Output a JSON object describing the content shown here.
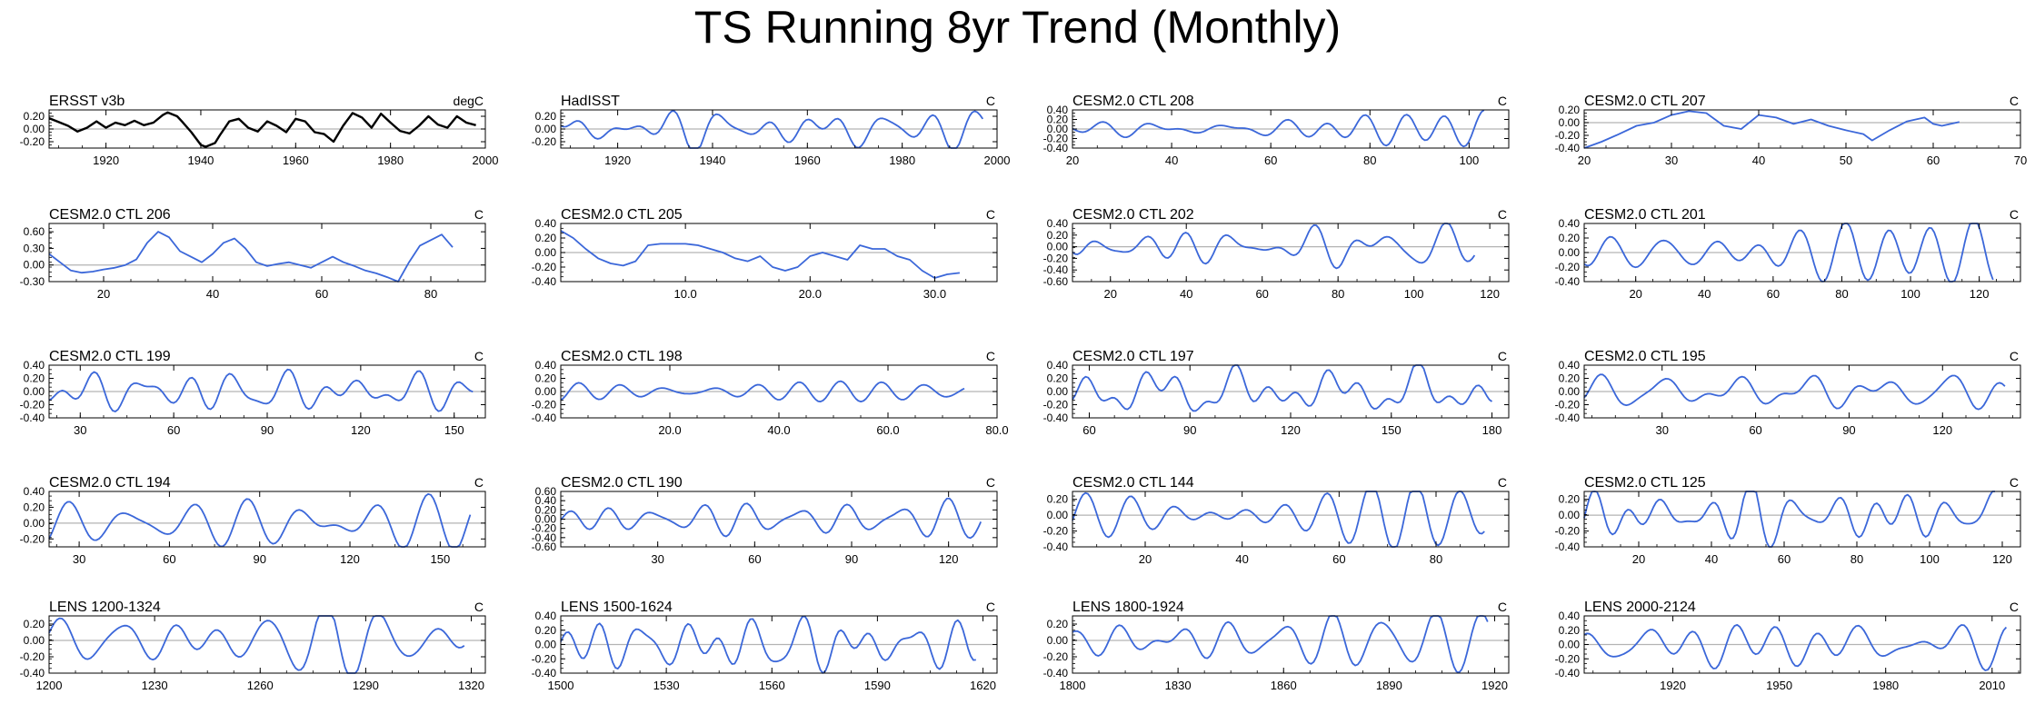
{
  "title": "TS Running 8yr Trend (Monthly)",
  "colors": {
    "observed": "#000000",
    "model": "#3b67d9",
    "zero_line": "#b3b3b3",
    "axis": "#000000"
  },
  "chart_data": [
    {
      "title": "ERSST v3b",
      "units": "degC",
      "type": "line",
      "color": "#000000",
      "xlim": [
        1908,
        2000
      ],
      "ylim": [
        -0.3,
        0.3
      ],
      "yticks": [
        "0.20",
        "0.00",
        "-0.20"
      ],
      "xticks": [
        "1920",
        "1940",
        "1960",
        "1980",
        "2000"
      ],
      "x_start": 1908,
      "x_end": 1998,
      "yscale": 0.28,
      "seed": 1,
      "series": [
        [
          1908,
          0.17
        ],
        [
          1910,
          0.11
        ],
        [
          1912,
          0.05
        ],
        [
          1914,
          -0.04
        ],
        [
          1916,
          0.02
        ],
        [
          1918,
          0.12
        ],
        [
          1920,
          0.02
        ],
        [
          1922,
          0.1
        ],
        [
          1924,
          0.06
        ],
        [
          1926,
          0.13
        ],
        [
          1928,
          0.06
        ],
        [
          1930,
          0.1
        ],
        [
          1932,
          0.22
        ],
        [
          1933,
          0.26
        ],
        [
          1935,
          0.2
        ],
        [
          1936,
          0.12
        ],
        [
          1938,
          -0.05
        ],
        [
          1940,
          -0.25
        ],
        [
          1941,
          -0.28
        ],
        [
          1943,
          -0.22
        ],
        [
          1944,
          -0.1
        ],
        [
          1946,
          0.12
        ],
        [
          1948,
          0.16
        ],
        [
          1950,
          0.02
        ],
        [
          1952,
          -0.04
        ],
        [
          1954,
          0.12
        ],
        [
          1956,
          0.05
        ],
        [
          1958,
          -0.05
        ],
        [
          1960,
          0.16
        ],
        [
          1962,
          0.12
        ],
        [
          1964,
          -0.05
        ],
        [
          1966,
          -0.08
        ],
        [
          1968,
          -0.2
        ],
        [
          1970,
          0.05
        ],
        [
          1972,
          0.25
        ],
        [
          1974,
          0.18
        ],
        [
          1976,
          0.02
        ],
        [
          1978,
          0.24
        ],
        [
          1980,
          0.1
        ],
        [
          1982,
          -0.03
        ],
        [
          1984,
          -0.07
        ],
        [
          1986,
          0.05
        ],
        [
          1988,
          0.2
        ],
        [
          1990,
          0.07
        ],
        [
          1992,
          0.02
        ],
        [
          1994,
          0.2
        ],
        [
          1996,
          0.1
        ],
        [
          1998,
          0.06
        ]
      ]
    },
    {
      "title": "HadISST",
      "units": "C",
      "type": "line",
      "color": "#3b67d9",
      "xlim": [
        1908,
        2000
      ],
      "ylim": [
        -0.3,
        0.3
      ],
      "yticks": [
        "0.20",
        "0.00",
        "-0.20"
      ],
      "xticks": [
        "1920",
        "1940",
        "1960",
        "1980",
        "2000"
      ],
      "x_start": 1908,
      "x_end": 1997,
      "yscale": 0.27,
      "seed": 2
    },
    {
      "title": "CESM2.0 CTL 208",
      "units": "C",
      "type": "line",
      "color": "#3b67d9",
      "xlim": [
        20,
        108
      ],
      "ylim": [
        -0.4,
        0.4
      ],
      "yticks": [
        "0.40",
        "0.20",
        "0.00",
        "-0.20",
        "-0.40"
      ],
      "xticks": [
        "20",
        "40",
        "60",
        "80",
        "100"
      ],
      "x_start": 20,
      "x_end": 103,
      "yscale": 0.3,
      "seed": 3
    },
    {
      "title": "CESM2.0 CTL 207",
      "units": "C",
      "type": "line",
      "color": "#3b67d9",
      "xlim": [
        20,
        70
      ],
      "ylim": [
        -0.4,
        0.2
      ],
      "yticks": [
        "0.20",
        "0.00",
        "-0.20",
        "-0.40"
      ],
      "xticks": [
        "20",
        "30",
        "40",
        "50",
        "60",
        "70"
      ],
      "x_start": 20,
      "x_end": 63,
      "yscale": 0.25,
      "seed": 4,
      "series": [
        [
          20,
          -0.4
        ],
        [
          22,
          -0.3
        ],
        [
          24,
          -0.18
        ],
        [
          26,
          -0.05
        ],
        [
          28,
          0.0
        ],
        [
          30,
          0.12
        ],
        [
          32,
          0.18
        ],
        [
          34,
          0.15
        ],
        [
          36,
          -0.05
        ],
        [
          38,
          -0.1
        ],
        [
          40,
          0.12
        ],
        [
          42,
          0.08
        ],
        [
          44,
          -0.02
        ],
        [
          46,
          0.05
        ],
        [
          48,
          -0.05
        ],
        [
          50,
          -0.12
        ],
        [
          52,
          -0.18
        ],
        [
          53,
          -0.28
        ],
        [
          55,
          -0.12
        ],
        [
          57,
          0.02
        ],
        [
          59,
          0.08
        ],
        [
          60,
          -0.02
        ],
        [
          61,
          -0.05
        ],
        [
          63,
          0.01
        ]
      ]
    },
    {
      "title": "CESM2.0 CTL 206",
      "units": "C",
      "type": "line",
      "color": "#3b67d9",
      "xlim": [
        10,
        90
      ],
      "ylim": [
        -0.3,
        0.75
      ],
      "yticks": [
        "0.60",
        "0.30",
        "0.00",
        "-0.30"
      ],
      "xticks": [
        "20",
        "40",
        "60",
        "80"
      ],
      "x_start": 10,
      "x_end": 84,
      "yscale": 0.3,
      "seed": 5,
      "series": [
        [
          10,
          0.2
        ],
        [
          12,
          0.05
        ],
        [
          14,
          -0.1
        ],
        [
          16,
          -0.14
        ],
        [
          18,
          -0.12
        ],
        [
          20,
          -0.08
        ],
        [
          22,
          -0.05
        ],
        [
          24,
          0.0
        ],
        [
          26,
          0.1
        ],
        [
          28,
          0.4
        ],
        [
          30,
          0.6
        ],
        [
          32,
          0.5
        ],
        [
          34,
          0.25
        ],
        [
          36,
          0.15
        ],
        [
          38,
          0.05
        ],
        [
          40,
          0.2
        ],
        [
          42,
          0.4
        ],
        [
          44,
          0.48
        ],
        [
          46,
          0.3
        ],
        [
          48,
          0.05
        ],
        [
          50,
          -0.02
        ],
        [
          52,
          0.02
        ],
        [
          54,
          0.05
        ],
        [
          56,
          0.0
        ],
        [
          58,
          -0.05
        ],
        [
          60,
          0.05
        ],
        [
          62,
          0.15
        ],
        [
          64,
          0.05
        ],
        [
          66,
          -0.02
        ],
        [
          68,
          -0.1
        ],
        [
          70,
          -0.15
        ],
        [
          72,
          -0.22
        ],
        [
          74,
          -0.3
        ],
        [
          76,
          0.05
        ],
        [
          78,
          0.35
        ],
        [
          80,
          0.45
        ],
        [
          82,
          0.55
        ],
        [
          84,
          0.32
        ]
      ]
    },
    {
      "title": "CESM2.0 CTL 205",
      "units": "C",
      "type": "line",
      "color": "#3b67d9",
      "xlim": [
        0,
        35
      ],
      "ylim": [
        -0.4,
        0.4
      ],
      "yticks": [
        "0.40",
        "0.20",
        "0.00",
        "-0.20",
        "-0.40"
      ],
      "xticks": [
        "10.0",
        "20.0",
        "30.0"
      ],
      "xtick_values": [
        10,
        20,
        30
      ],
      "x_start": 0,
      "x_end": 32,
      "yscale": 0.25,
      "seed": 6,
      "series": [
        [
          0,
          0.3
        ],
        [
          1,
          0.2
        ],
        [
          2,
          0.05
        ],
        [
          3,
          -0.08
        ],
        [
          4,
          -0.15
        ],
        [
          5,
          -0.18
        ],
        [
          6,
          -0.12
        ],
        [
          7,
          0.1
        ],
        [
          8,
          0.12
        ],
        [
          9,
          0.12
        ],
        [
          10,
          0.12
        ],
        [
          11,
          0.1
        ],
        [
          12,
          0.05
        ],
        [
          13,
          0.0
        ],
        [
          14,
          -0.08
        ],
        [
          15,
          -0.12
        ],
        [
          16,
          -0.05
        ],
        [
          17,
          -0.2
        ],
        [
          18,
          -0.25
        ],
        [
          19,
          -0.2
        ],
        [
          20,
          -0.05
        ],
        [
          21,
          0.0
        ],
        [
          22,
          -0.05
        ],
        [
          23,
          -0.1
        ],
        [
          24,
          0.1
        ],
        [
          25,
          0.05
        ],
        [
          26,
          0.05
        ],
        [
          27,
          -0.05
        ],
        [
          28,
          -0.1
        ],
        [
          29,
          -0.25
        ],
        [
          30,
          -0.35
        ],
        [
          31,
          -0.3
        ],
        [
          32,
          -0.28
        ]
      ]
    },
    {
      "title": "CESM2.0 CTL 202",
      "units": "C",
      "type": "line",
      "color": "#3b67d9",
      "xlim": [
        10,
        125
      ],
      "ylim": [
        -0.6,
        0.4
      ],
      "yticks": [
        "0.40",
        "0.20",
        "0.00",
        "-0.20",
        "-0.40",
        "-0.60"
      ],
      "xticks": [
        "20",
        "40",
        "60",
        "80",
        "100",
        "120"
      ],
      "x_start": 10,
      "x_end": 116,
      "yscale": 0.3,
      "seed": 7
    },
    {
      "title": "CESM2.0 CTL 201",
      "units": "C",
      "type": "line",
      "color": "#3b67d9",
      "xlim": [
        5,
        132
      ],
      "ylim": [
        -0.4,
        0.4
      ],
      "yticks": [
        "0.40",
        "0.20",
        "0.00",
        "-0.20",
        "-0.40"
      ],
      "xticks": [
        "20",
        "40",
        "60",
        "80",
        "100",
        "120"
      ],
      "x_start": 5,
      "x_end": 124,
      "yscale": 0.3,
      "seed": 8
    },
    {
      "title": "CESM2.0 CTL 199",
      "units": "C",
      "type": "line",
      "color": "#3b67d9",
      "xlim": [
        20,
        160
      ],
      "ylim": [
        -0.4,
        0.4
      ],
      "yticks": [
        "0.40",
        "0.20",
        "0.00",
        "-0.20",
        "-0.40"
      ],
      "xticks": [
        "30",
        "60",
        "90",
        "120",
        "150"
      ],
      "x_start": 20,
      "x_end": 156,
      "yscale": 0.32,
      "seed": 9
    },
    {
      "title": "CESM2.0 CTL 198",
      "units": "C",
      "type": "line",
      "color": "#3b67d9",
      "xlim": [
        0,
        80
      ],
      "ylim": [
        -0.4,
        0.4
      ],
      "yticks": [
        "0.40",
        "0.20",
        "0.00",
        "-0.20",
        "-0.40"
      ],
      "xticks": [
        "20.0",
        "40.0",
        "60.0",
        "80.0"
      ],
      "xtick_values": [
        20,
        40,
        60,
        80
      ],
      "x_start": 0,
      "x_end": 74,
      "yscale": 0.3,
      "seed": 10
    },
    {
      "title": "CESM2.0 CTL 197",
      "units": "C",
      "type": "line",
      "color": "#3b67d9",
      "xlim": [
        55,
        185
      ],
      "ylim": [
        -0.4,
        0.4
      ],
      "yticks": [
        "0.40",
        "0.20",
        "0.00",
        "-0.20",
        "-0.40"
      ],
      "xticks": [
        "60",
        "90",
        "120",
        "150",
        "180"
      ],
      "x_start": 55,
      "x_end": 180,
      "yscale": 0.32,
      "seed": 11
    },
    {
      "title": "CESM2.0 CTL 195",
      "units": "C",
      "type": "line",
      "color": "#3b67d9",
      "xlim": [
        5,
        145
      ],
      "ylim": [
        -0.4,
        0.4
      ],
      "yticks": [
        "0.40",
        "0.20",
        "0.00",
        "-0.20",
        "-0.40"
      ],
      "xticks": [
        "30",
        "60",
        "90",
        "120"
      ],
      "x_start": 5,
      "x_end": 140,
      "yscale": 0.32,
      "seed": 12
    },
    {
      "title": "CESM2.0 CTL 194",
      "units": "C",
      "type": "line",
      "color": "#3b67d9",
      "xlim": [
        20,
        165
      ],
      "ylim": [
        -0.3,
        0.4
      ],
      "yticks": [
        "0.40",
        "0.20",
        "0.00",
        "-0.20"
      ],
      "xticks": [
        "30",
        "60",
        "90",
        "120",
        "150"
      ],
      "x_start": 20,
      "x_end": 160,
      "yscale": 0.3,
      "seed": 13
    },
    {
      "title": "CESM2.0 CTL 190",
      "units": "C",
      "type": "line",
      "color": "#3b67d9",
      "xlim": [
        0,
        135
      ],
      "ylim": [
        -0.6,
        0.6
      ],
      "yticks": [
        "0.60",
        "0.40",
        "0.20",
        "0.00",
        "-0.20",
        "-0.40",
        "-0.60"
      ],
      "xticks": [
        "30",
        "60",
        "90",
        "120"
      ],
      "x_start": 0,
      "x_end": 130,
      "yscale": 0.35,
      "seed": 14
    },
    {
      "title": "CESM2.0 CTL 144",
      "units": "C",
      "type": "line",
      "color": "#3b67d9",
      "xlim": [
        5,
        95
      ],
      "ylim": [
        -0.4,
        0.3
      ],
      "yticks": [
        "0.20",
        "0.00",
        "-0.20",
        "-0.40"
      ],
      "xticks": [
        "20",
        "40",
        "60",
        "80"
      ],
      "x_start": 5,
      "x_end": 90,
      "yscale": 0.3,
      "seed": 15
    },
    {
      "title": "CESM2.0 CTL 125",
      "units": "C",
      "type": "line",
      "color": "#3b67d9",
      "xlim": [
        5,
        125
      ],
      "ylim": [
        -0.4,
        0.3
      ],
      "yticks": [
        "0.20",
        "0.00",
        "-0.20",
        "-0.40"
      ],
      "xticks": [
        "20",
        "40",
        "60",
        "80",
        "100",
        "120"
      ],
      "x_start": 5,
      "x_end": 118,
      "yscale": 0.3,
      "seed": 16
    },
    {
      "title": "LENS 1200-1324",
      "units": "C",
      "type": "line",
      "color": "#3b67d9",
      "xlim": [
        1200,
        1324
      ],
      "ylim": [
        -0.4,
        0.3
      ],
      "yticks": [
        "0.20",
        "0.00",
        "-0.20",
        "-0.40"
      ],
      "xticks": [
        "1200",
        "1230",
        "1260",
        "1290",
        "1320"
      ],
      "x_start": 1200,
      "x_end": 1318,
      "yscale": 0.3,
      "seed": 17
    },
    {
      "title": "LENS 1500-1624",
      "units": "C",
      "type": "line",
      "color": "#3b67d9",
      "xlim": [
        1500,
        1624
      ],
      "ylim": [
        -0.4,
        0.4
      ],
      "yticks": [
        "0.40",
        "0.20",
        "0.00",
        "-0.20",
        "-0.40"
      ],
      "xticks": [
        "1500",
        "1530",
        "1560",
        "1590",
        "1620"
      ],
      "x_start": 1500,
      "x_end": 1618,
      "yscale": 0.28,
      "seed": 18
    },
    {
      "title": "LENS 1800-1924",
      "units": "C",
      "type": "line",
      "color": "#3b67d9",
      "xlim": [
        1800,
        1924
      ],
      "ylim": [
        -0.4,
        0.3
      ],
      "yticks": [
        "0.20",
        "0.00",
        "-0.20",
        "-0.40"
      ],
      "xticks": [
        "1800",
        "1830",
        "1860",
        "1890",
        "1920"
      ],
      "x_start": 1800,
      "x_end": 1918,
      "yscale": 0.3,
      "seed": 19
    },
    {
      "title": "LENS 2000-2124",
      "units": "C",
      "type": "line",
      "color": "#3b67d9",
      "xlim": [
        1895,
        2018
      ],
      "ylim": [
        -0.4,
        0.4
      ],
      "yticks": [
        "0.40",
        "0.20",
        "0.00",
        "-0.20",
        "-0.40"
      ],
      "xticks": [
        "1920",
        "1950",
        "1980",
        "2010"
      ],
      "x_start": 1895,
      "x_end": 2014,
      "yscale": 0.28,
      "seed": 20
    }
  ]
}
